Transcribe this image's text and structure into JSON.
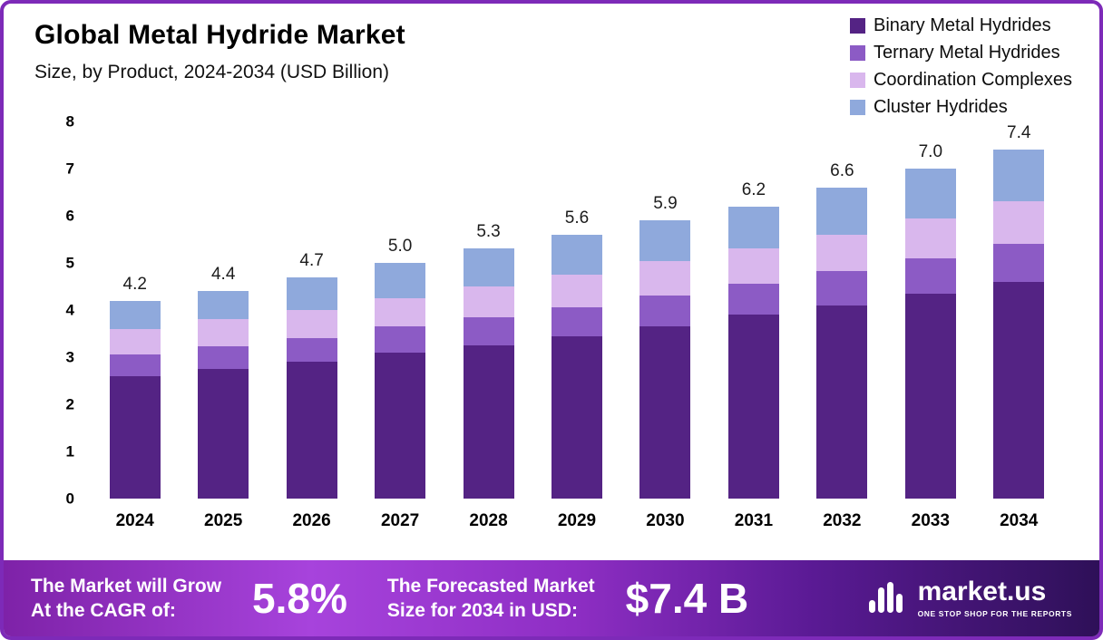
{
  "frame": {
    "border_color": "#7d2ab8"
  },
  "header": {
    "title": "Global Metal Hydride Market",
    "subtitle": "Size, by Product, 2024-2034 (USD Billion)"
  },
  "chart_data": {
    "type": "bar",
    "subtype": "stacked",
    "title": "Global Metal Hydride Market",
    "subtitle": "Size, by Product, 2024-2034 (USD Billion)",
    "xlabel": "",
    "ylabel": "",
    "ylim": [
      0,
      8
    ],
    "yticks": [
      0,
      1,
      2,
      3,
      4,
      5,
      6,
      7,
      8
    ],
    "grid": false,
    "legend_position": "top-right",
    "categories": [
      "2024",
      "2025",
      "2026",
      "2027",
      "2028",
      "2029",
      "2030",
      "2031",
      "2032",
      "2033",
      "2034"
    ],
    "totals": [
      "4.2",
      "4.4",
      "4.7",
      "5.0",
      "5.3",
      "5.6",
      "5.9",
      "6.2",
      "6.6",
      "7.0",
      "7.4"
    ],
    "series": [
      {
        "name": "Binary Metal Hydrides",
        "color": "#542384",
        "values": [
          2.6,
          2.75,
          2.9,
          3.1,
          3.25,
          3.45,
          3.65,
          3.9,
          4.1,
          4.35,
          4.6
        ]
      },
      {
        "name": "Ternary Metal Hydrides",
        "color": "#8c5bc5",
        "values": [
          0.45,
          0.48,
          0.5,
          0.55,
          0.6,
          0.6,
          0.65,
          0.65,
          0.72,
          0.75,
          0.8
        ]
      },
      {
        "name": "Coordination Complexes",
        "color": "#d9b7ed",
        "values": [
          0.55,
          0.57,
          0.6,
          0.6,
          0.65,
          0.7,
          0.73,
          0.75,
          0.78,
          0.85,
          0.9
        ]
      },
      {
        "name": "Cluster Hydrides",
        "color": "#8fa9dc",
        "values": [
          0.6,
          0.6,
          0.7,
          0.75,
          0.8,
          0.85,
          0.87,
          0.9,
          1.0,
          1.05,
          1.1
        ]
      }
    ]
  },
  "banner": {
    "cagr_label": "The Market will Grow\nAt the CAGR of:",
    "cagr_value": "5.8%",
    "forecast_label": "The Forecasted Market\nSize for 2034 in USD:",
    "forecast_value": "$7.4 B",
    "logo_text": "market.us",
    "logo_tagline": "ONE STOP SHOP FOR THE REPORTS"
  }
}
